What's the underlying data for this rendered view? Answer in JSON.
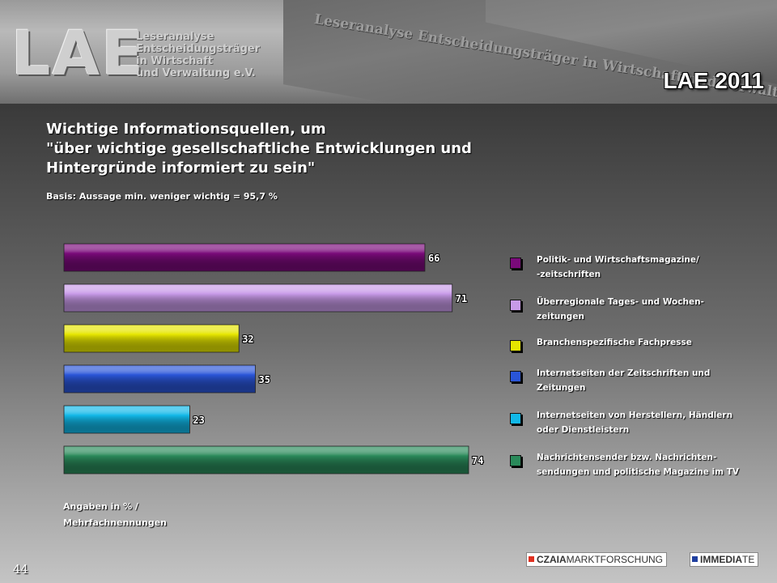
{
  "header": {
    "logo_text": "LAE",
    "logo_subtitle_lines": [
      "Leseranalyse",
      "Entscheidungsträger",
      "in Wirtschaft",
      "und Verwaltung e.V."
    ],
    "book_spine_text": "Leseranalyse Entscheidungsträger in Wirtschaft und Verwaltung",
    "year_badge": "LAE 2011"
  },
  "title_lines": [
    "Wichtige Informationsquellen, um",
    "\"über wichtige gesellschaftliche Entwicklungen und",
    "Hintergründe informiert zu sein\""
  ],
  "subtitle": "Basis: Aussage min. weniger wichtig = 95,7 %",
  "chart_data": {
    "type": "bar",
    "orientation": "horizontal",
    "categories": [
      "Politik- und Wirtschaftsmagazine/ -zeitschriften",
      "Überregionale Tages- und Wochen- zeitungen",
      "Branchenspezifische Fachpresse",
      "Internetseiten der Zeitschriften und Zeitungen",
      "Internetseiten von Herstellern, Händlern oder Dienstleistern",
      "Nachrichtensender bzw. Nachrichten- sendungen und politische Magazine im TV"
    ],
    "values": [
      66,
      71,
      32,
      35,
      23,
      74
    ],
    "colors": [
      "#7a0a7a",
      "#c89ae8",
      "#e6e600",
      "#2a55d8",
      "#11b8e8",
      "#2a8a5a"
    ],
    "xlim": [
      0,
      74
    ],
    "legend_position": "right",
    "grid": false,
    "title": "Wichtige Informationsquellen, um \"über wichtige gesellschaftliche Entwicklungen und Hintergründe informiert zu sein\""
  },
  "legend": [
    {
      "lines": [
        "Politik- und Wirtschaftsmagazine/",
        "-zeitschriften"
      ],
      "color": "#7a0a7a"
    },
    {
      "lines": [
        "Überregionale Tages- und Wochen-",
        "zeitungen"
      ],
      "color": "#c89ae8"
    },
    {
      "lines": [
        "Branchenspezifische Fachpresse"
      ],
      "color": "#e6e600"
    },
    {
      "lines": [
        "Internetseiten der Zeitschriften und",
        "Zeitungen"
      ],
      "color": "#2a55d8"
    },
    {
      "lines": [
        "Internetseiten von Herstellern, Händlern",
        "oder Dienstleistern"
      ],
      "color": "#11b8e8"
    },
    {
      "lines": [
        "Nachrichtensender bzw. Nachrichten-",
        "sendungen und politische Magazine im TV"
      ],
      "color": "#2a8a5a"
    }
  ],
  "footnote_lines": [
    "Angaben in % /",
    "Mehrfachnennungen"
  ],
  "page_number": "44",
  "footer_logos": {
    "czaia_bold": "CZAIA",
    "czaia_rest": "MARKTFORSCHUNG",
    "immediate_bold": "IMMEDIA",
    "immediate_rest": "TE"
  }
}
